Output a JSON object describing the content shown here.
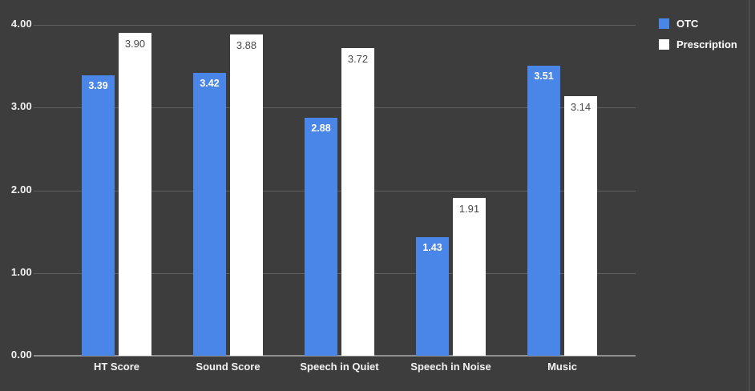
{
  "chart_data": {
    "type": "bar",
    "title": "",
    "categories": [
      "HT Score",
      "Sound Score",
      "Speech in Quiet",
      "Speech in Noise",
      "Music"
    ],
    "series": [
      {
        "name": "OTC",
        "color": "#4a86e8",
        "values": [
          3.39,
          3.42,
          2.88,
          1.43,
          3.51
        ],
        "labels": [
          "3.39",
          "3.42",
          "2.88",
          "1.43",
          "3.51"
        ]
      },
      {
        "name": "Prescription",
        "color": "#ffffff",
        "values": [
          3.9,
          3.88,
          3.72,
          1.91,
          3.14
        ],
        "labels": [
          "3.90",
          "3.88",
          "3.72",
          "1.91",
          "3.14"
        ]
      }
    ],
    "xlabel": "",
    "ylabel": "",
    "ylim": [
      0,
      4
    ],
    "y_ticks": [
      "0.00",
      "1.00",
      "2.00",
      "3.00",
      "4.00"
    ],
    "grid": "horizontal",
    "legend_position": "top-right",
    "colors": {
      "background": "#3d3d3d",
      "gridline": "#616161",
      "baseline": "#8f8f8f",
      "axis_text": "#f2f2f2",
      "otc_bar": "#4a86e8",
      "prescription_bar": "#ffffff",
      "label_on_blue": "#ffffff",
      "label_on_white": "#4a4a4a"
    }
  }
}
